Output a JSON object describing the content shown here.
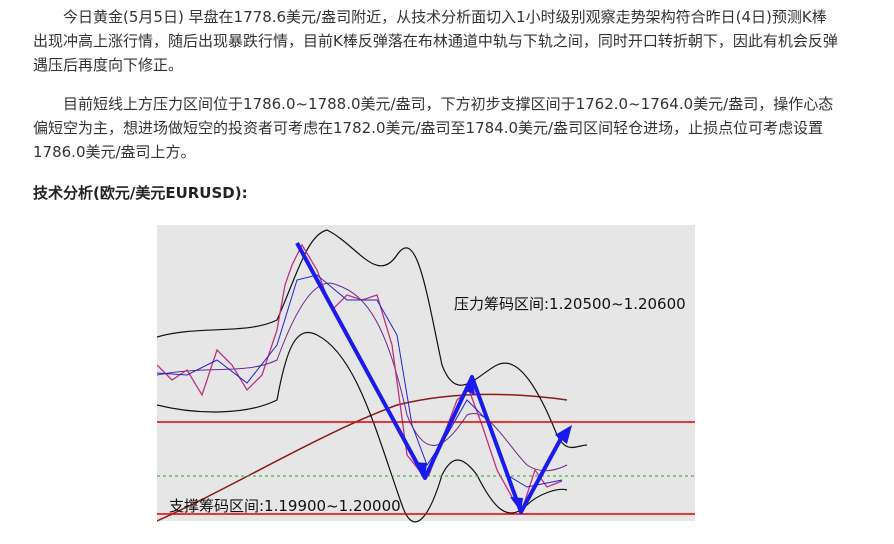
{
  "article": {
    "paragraphs": [
      "今日黄金(5月5日) 早盘在1778.6美元/盎司附近，从技术分析面切入1小时级别观察走势架构符合昨日(4日)预测K棒出现冲高上涨行情，随后出现暴跌行情，目前K棒反弹落在布林通道中轨与下轨之间，同时开口转折朝下，因此有机会反弹遇压后再度向下修正。",
      "目前短线上方压力区间位于1786.0~1788.0美元/盎司，下方初步支撑区间于1762.0~1764.0美元/盎司，操作心态偏短空为主，想进场做短空的投资者可考虑在1782.0美元/盎司至1784.0美元/盎司区间轻仓进场，止损点位可考虑设置1786.0美元/盎司上方。"
    ],
    "heading": "技术分析(欧元/美元EURUSD):",
    "figure": {
      "resistance_label": "压力筹码区间:1.20500~1.20600",
      "support_label": "支撑筹码区间:1.19900~1.20000"
    }
  }
}
